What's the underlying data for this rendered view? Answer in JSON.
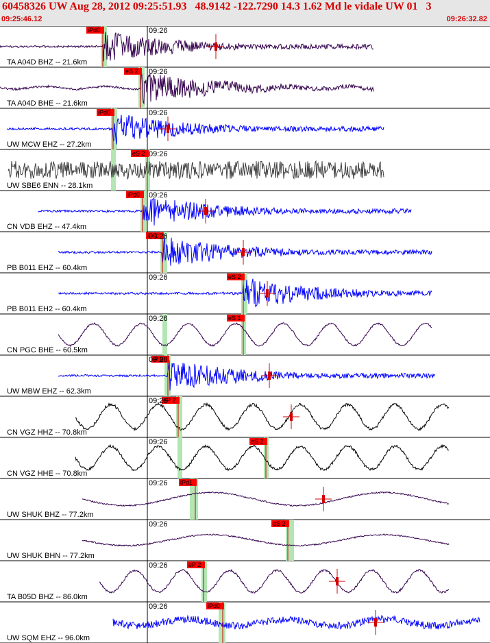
{
  "header": {
    "title": "60458326 UW Aug 28, 2012 09:25:51.93   48.9142 -122.7290 14.3 1.62 Md le vidale UW 01   3",
    "start_time": "09:25:46.12",
    "end_time": "09:26:32.82"
  },
  "chart_data": {
    "type": "line",
    "title": "60458326 UW Aug 28, 2012 09:25:51.93   48.9142 -122.7290 14.3 1.62 Md le vidale UW 01   3",
    "x_range_label": [
      "09:25:46.12",
      "09:26:32.82"
    ],
    "minute_label": "09:26",
    "traces": [
      {
        "name": "TA A04D BHZ -- 21.6km",
        "color": "#33004d",
        "kind": "event",
        "pick": "iPd0",
        "noise": 0.12,
        "wave": 0.0
      },
      {
        "name": "TA A04D BHE -- 21.6km",
        "color": "#33004d",
        "kind": "event",
        "pick": "eS 2",
        "noise": 0.12,
        "wave": 0.25
      },
      {
        "name": "UW MCW EHZ -- 27.2km",
        "color": "#0000ff",
        "kind": "event",
        "pick": "iPd0",
        "noise": 0.15,
        "wave": 0.0
      },
      {
        "name": "UW SBE6 ENN -- 28.1km",
        "color": "#404040",
        "kind": "noise",
        "pick": "eS 2",
        "noise": 0.7,
        "wave": 0.0
      },
      {
        "name": "CN VDB EHZ -- 47.4km",
        "color": "#0000ff",
        "kind": "event",
        "pick": "iPd0",
        "noise": 0.1,
        "wave": 0.0
      },
      {
        "name": "PB B011 EHZ -- 60.4km",
        "color": "#0000ff",
        "kind": "event",
        "pick": "iP 1",
        "noise": 0.15,
        "wave": 0.0
      },
      {
        "name": "PB B011 EH2 -- 60.4km",
        "color": "#0000ff",
        "kind": "event",
        "pick": "eS 2",
        "noise": 0.2,
        "wave": 0.0
      },
      {
        "name": "CN PGC BHE -- 60.5km",
        "color": "#33004d",
        "kind": "wave",
        "pick": "eS 1",
        "noise": 0.05,
        "wave": 0.8
      },
      {
        "name": "UW MBW EHZ -- 62.3km",
        "color": "#0000ff",
        "kind": "event",
        "pick": "iP 0",
        "noise": 0.15,
        "wave": 0.0
      },
      {
        "name": "CN VGZ HHZ -- 70.8km",
        "color": "#000000",
        "kind": "wave",
        "pick": "eP 2",
        "noise": 0.08,
        "wave": 0.9
      },
      {
        "name": "CN VGZ HHE -- 70.8km",
        "color": "#000000",
        "kind": "wave",
        "pick": "eS 2",
        "noise": 0.08,
        "wave": 0.85
      },
      {
        "name": "UW SHUK BHZ -- 77.2km",
        "color": "#33004d",
        "kind": "slow",
        "pick": "iPd1",
        "noise": 0.05,
        "wave": 0.6
      },
      {
        "name": "UW SHUK BHN -- 77.2km",
        "color": "#33004d",
        "kind": "slow",
        "pick": "eS 2",
        "noise": 0.04,
        "wave": 0.5
      },
      {
        "name": "TA B05D BHZ -- 86.0km",
        "color": "#33004d",
        "kind": "wave",
        "pick": "eP 2",
        "noise": 0.06,
        "wave": 0.8
      },
      {
        "name": "UW SQM EHZ -- 96.0km",
        "color": "#0000ff",
        "kind": "noisy",
        "pick": "iPd0",
        "noise": 0.3,
        "wave": 0.4
      }
    ],
    "colors": {
      "pick_box": "#ff0000",
      "window": "#b3e6b3",
      "marker": "#d40000"
    }
  }
}
